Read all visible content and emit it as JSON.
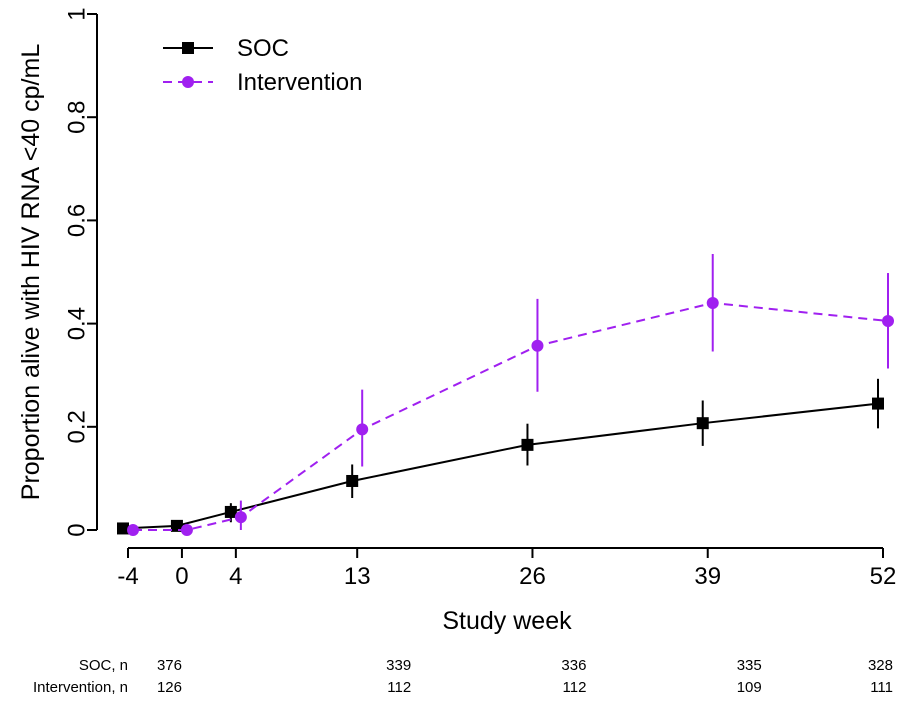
{
  "chart_data": {
    "type": "line",
    "xlabel": "Study week",
    "ylabel": "Proportion alive with HIV RNA <40 cp/mL",
    "x_ticks": [
      -4,
      0,
      4,
      13,
      26,
      39,
      52
    ],
    "x_tick_labels": [
      "-4",
      "0",
      "4",
      "13",
      "26",
      "39",
      "52"
    ],
    "y_ticks": [
      0,
      0.2,
      0.4,
      0.6,
      0.8,
      1
    ],
    "y_tick_labels": [
      "0",
      "0.2",
      "0.4",
      "0.6",
      "0.8",
      "1"
    ],
    "xlim": [
      -4,
      52
    ],
    "ylim": [
      0,
      1
    ],
    "grid": false,
    "legend_position": "top-left",
    "series": [
      {
        "name": "SOC",
        "color": "#000000",
        "line_style": "solid",
        "marker": "square",
        "points": [
          {
            "x": -4,
            "y": 0.003
          },
          {
            "x": 0,
            "y": 0.008
          },
          {
            "x": 4,
            "y": 0.035,
            "lower": 0.015,
            "upper": 0.052
          },
          {
            "x": 13,
            "y": 0.095,
            "lower": 0.062,
            "upper": 0.127
          },
          {
            "x": 26,
            "y": 0.165,
            "lower": 0.125,
            "upper": 0.206
          },
          {
            "x": 39,
            "y": 0.207,
            "lower": 0.163,
            "upper": 0.251
          },
          {
            "x": 52,
            "y": 0.245,
            "lower": 0.197,
            "upper": 0.293
          }
        ]
      },
      {
        "name": "Intervention",
        "color": "#a020f0",
        "line_style": "dashed",
        "marker": "circle",
        "points": [
          {
            "x": -4,
            "y": 0.0
          },
          {
            "x": 0,
            "y": 0.0
          },
          {
            "x": 4,
            "y": 0.025,
            "lower": 0.0,
            "upper": 0.057
          },
          {
            "x": 13,
            "y": 0.195,
            "lower": 0.123,
            "upper": 0.272
          },
          {
            "x": 26,
            "y": 0.357,
            "lower": 0.268,
            "upper": 0.448
          },
          {
            "x": 39,
            "y": 0.44,
            "lower": 0.346,
            "upper": 0.535
          },
          {
            "x": 52,
            "y": 0.405,
            "lower": 0.313,
            "upper": 0.498
          }
        ]
      }
    ],
    "risk_table": {
      "x": [
        -4,
        13,
        26,
        39,
        52
      ],
      "rows": [
        {
          "label": "SOC, n",
          "values": [
            "376",
            "339",
            "336",
            "335",
            "328"
          ]
        },
        {
          "label": "Intervention, n",
          "values": [
            "126",
            "112",
            "112",
            "109",
            "111"
          ]
        }
      ]
    }
  }
}
